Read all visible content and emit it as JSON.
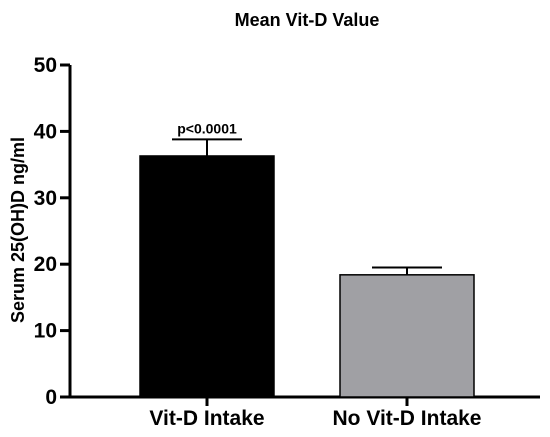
{
  "chart_data": {
    "type": "bar",
    "title": "Mean Vit-D Value",
    "ylabel": "Serum 25(OH)D ng/ml",
    "xlabel": "",
    "categories": [
      "Vit-D Intake",
      "No Vit-D Intake"
    ],
    "values": [
      36.3,
      18.4
    ],
    "error_upper": [
      38.8,
      19.5
    ],
    "colors": [
      "#000000",
      "#a0a0a4"
    ],
    "ylim": [
      0,
      50
    ],
    "yticks": [
      0,
      10,
      20,
      30,
      40,
      50
    ],
    "annotation": "p<0.0001",
    "grid": false,
    "legend": "none"
  }
}
